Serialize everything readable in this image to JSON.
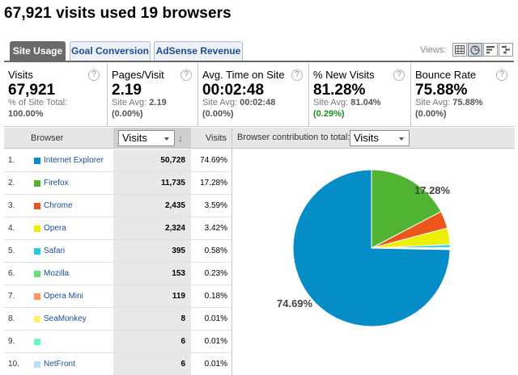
{
  "title": "67,921 visits used 19 browsers",
  "tabs": [
    {
      "label": "Site Usage",
      "active": true
    },
    {
      "label": "Goal Conversion",
      "active": false
    },
    {
      "label": "AdSense Revenue",
      "active": false
    }
  ],
  "views": {
    "label": "Views:",
    "buttons": [
      {
        "icon": "table-view-icon",
        "active": false
      },
      {
        "icon": "pie-view-icon",
        "active": true
      },
      {
        "icon": "bar-view-icon",
        "active": false
      },
      {
        "icon": "comparison-view-icon",
        "active": false
      }
    ]
  },
  "metrics": [
    {
      "label": "Visits",
      "value": "67,921",
      "sub1_prefix": "% of Site Total:",
      "sub1_value": "",
      "sub2": "100.00%",
      "sub2_color": "gray"
    },
    {
      "label": "Pages/Visit",
      "value": "2.19",
      "sub1_prefix": "Site Avg:",
      "sub1_value": "2.19",
      "sub2": "(0.00%)",
      "sub2_color": "gray"
    },
    {
      "label": "Avg. Time on Site",
      "value": "00:02:48",
      "sub1_prefix": "Site Avg:",
      "sub1_value": "00:02:48",
      "sub2": "(0.00%)",
      "sub2_color": "gray"
    },
    {
      "label": "% New Visits",
      "value": "81.28%",
      "sub1_prefix": "Site Avg:",
      "sub1_value": "81.04%",
      "sub2": "(0.29%)",
      "sub2_color": "green"
    },
    {
      "label": "Bounce Rate",
      "value": "75.88%",
      "sub1_prefix": "Site Avg:",
      "sub1_value": "75.88%",
      "sub2": "(0.00%)",
      "sub2_color": "gray"
    }
  ],
  "table": {
    "col_browser": "Browser",
    "sort_select": "Visits",
    "col_visits": "Visits",
    "rows": [
      {
        "num": "1.",
        "name": "Internet Explorer",
        "visits": "50,728",
        "pct": "74.69%",
        "color": "#058dc7"
      },
      {
        "num": "2.",
        "name": "Firefox",
        "visits": "11,735",
        "pct": "17.28%",
        "color": "#50b432"
      },
      {
        "num": "3.",
        "name": "Chrome",
        "visits": "2,435",
        "pct": "3.59%",
        "color": "#ed561b"
      },
      {
        "num": "4.",
        "name": "Opera",
        "visits": "2,324",
        "pct": "3.42%",
        "color": "#edef00"
      },
      {
        "num": "5.",
        "name": "Safari",
        "visits": "395",
        "pct": "0.58%",
        "color": "#24cbe5"
      },
      {
        "num": "6.",
        "name": "Mozilla",
        "visits": "153",
        "pct": "0.23%",
        "color": "#64e572"
      },
      {
        "num": "7.",
        "name": "Opera Mini",
        "visits": "119",
        "pct": "0.18%",
        "color": "#ff9655"
      },
      {
        "num": "8.",
        "name": "SeaMonkey",
        "visits": "8",
        "pct": "0.01%",
        "color": "#fff263"
      },
      {
        "num": "9.",
        "name": "",
        "visits": "6",
        "pct": "0.01%",
        "color": "#6af9c4"
      },
      {
        "num": "10.",
        "name": "NetFront",
        "visits": "6",
        "pct": "0.01%",
        "color": "#b2deff"
      }
    ]
  },
  "chart": {
    "label": "Browser contribution to total:",
    "select": "Visits"
  },
  "chart_data": {
    "type": "pie",
    "categories": [
      "Internet Explorer",
      "Firefox",
      "Chrome",
      "Opera",
      "Safari",
      "Mozilla",
      "Opera Mini",
      "SeaMonkey",
      "",
      "NetFront"
    ],
    "values": [
      74.69,
      17.28,
      3.59,
      3.42,
      0.58,
      0.23,
      0.18,
      0.01,
      0.01,
      0.01
    ],
    "colors": [
      "#058dc7",
      "#50b432",
      "#ed561b",
      "#edef00",
      "#24cbe5",
      "#64e572",
      "#ff9655",
      "#fff263",
      "#6af9c4",
      "#b2deff"
    ],
    "labels_shown": [
      "74.69%",
      "17.28%"
    ]
  }
}
